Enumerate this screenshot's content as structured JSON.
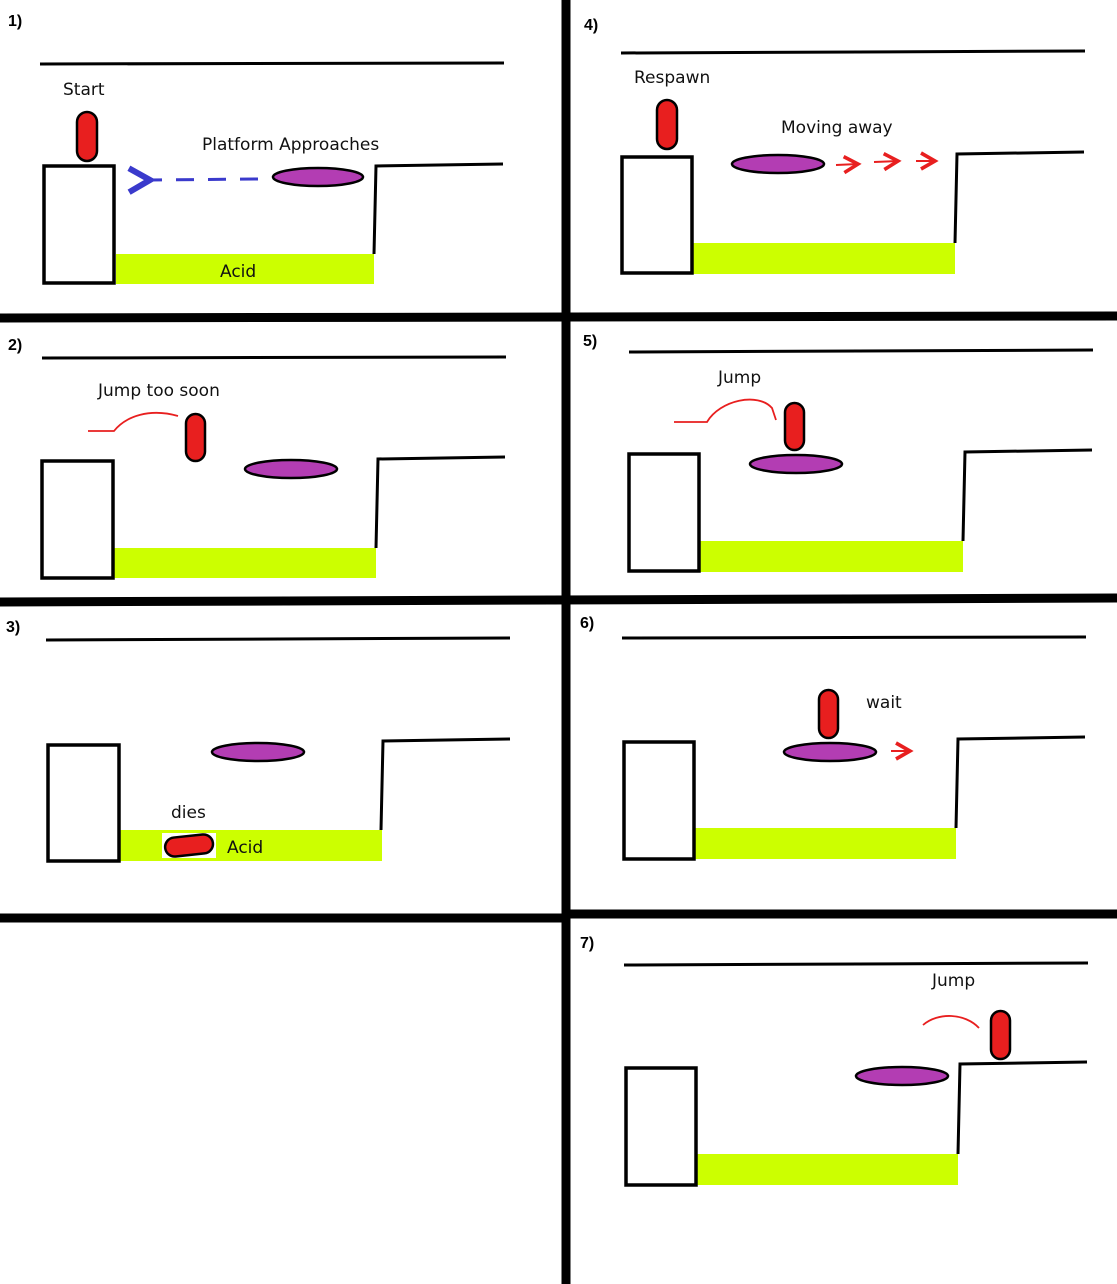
{
  "panels": [
    {
      "number": "1)",
      "labels": {
        "start": "Start",
        "platform": "Platform Approaches",
        "acid": "Acid"
      }
    },
    {
      "number": "2)",
      "labels": {
        "jump": "Jump too soon"
      }
    },
    {
      "number": "3)",
      "labels": {
        "dies": "dies",
        "acid": "Acid"
      }
    },
    {
      "number": "4)",
      "labels": {
        "respawn": "Respawn",
        "moving": "Moving away"
      }
    },
    {
      "number": "5)",
      "labels": {
        "jump": "Jump"
      }
    },
    {
      "number": "6)",
      "labels": {
        "wait": "wait"
      }
    },
    {
      "number": "7)",
      "labels": {
        "jump": "Jump"
      }
    }
  ],
  "colors": {
    "acid": "#ccff00",
    "platform": "#b33db3",
    "character": "#e81f1f",
    "approach_arrow": "#3a3acc",
    "motion_arrow": "#e81f1f"
  }
}
